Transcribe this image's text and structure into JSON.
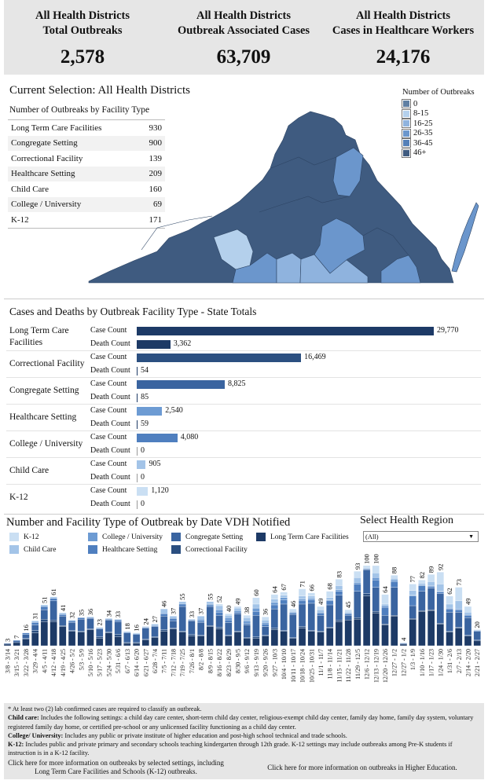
{
  "kpis": [
    {
      "title1": "All Health Districts",
      "title2": "Total Outbreaks",
      "value": "2,578"
    },
    {
      "title1": "All Health Districts",
      "title2": "Outbreak Associated Cases",
      "value": "63,709"
    },
    {
      "title1": "All Health Districts",
      "title2": "Cases in Healthcare Workers",
      "value": "24,176"
    }
  ],
  "selection": {
    "title": "Current Selection: All Health Districts",
    "table_title": "Number of Outbreaks by Facility Type",
    "rows": [
      {
        "label": "Long Term Care Facilities",
        "value": "930"
      },
      {
        "label": "Congregate Setting",
        "value": "900"
      },
      {
        "label": "Correctional Facility",
        "value": "139"
      },
      {
        "label": "Healthcare Setting",
        "value": "209"
      },
      {
        "label": "Child Care",
        "value": "160"
      },
      {
        "label": "College / University",
        "value": "69"
      },
      {
        "label": "K-12",
        "value": "171"
      }
    ]
  },
  "map_legend": {
    "title": "Number of Outbreaks",
    "items": [
      {
        "label": "0",
        "color": "#5f7fa3"
      },
      {
        "label": "8-15",
        "color": "#b4d0ec"
      },
      {
        "label": "16-25",
        "color": "#8fb3de"
      },
      {
        "label": "26-35",
        "color": "#6b96cc"
      },
      {
        "label": "36-45",
        "color": "#5580b8"
      },
      {
        "label": "46+",
        "color": "#3f5b80"
      }
    ]
  },
  "cases_deaths": {
    "title": "Cases and Deaths by Outbreak Facility Type - State Totals",
    "case_label": "Case Count",
    "death_label": "Death Count",
    "groups": [
      {
        "name": "Long Term Care Facilities",
        "cases": 29770,
        "cases_label": "29,770",
        "deaths": 3362,
        "deaths_label": "3,362",
        "color": "#1d3a66"
      },
      {
        "name": "Correctional Facility",
        "cases": 16469,
        "cases_label": "16,469",
        "deaths": 54,
        "deaths_label": "54",
        "color": "#2b4f80"
      },
      {
        "name": "Congregate Setting",
        "cases": 8825,
        "cases_label": "8,825",
        "deaths": 85,
        "deaths_label": "85",
        "color": "#3a64a0"
      },
      {
        "name": "Healthcare Setting",
        "cases": 2540,
        "cases_label": "2,540",
        "deaths": 59,
        "deaths_label": "59",
        "color": "#6d9bd3"
      },
      {
        "name": "College / University",
        "cases": 4080,
        "cases_label": "4,080",
        "deaths": 0,
        "deaths_label": "0",
        "color": "#4f7fbf"
      },
      {
        "name": "Child Care",
        "cases": 905,
        "cases_label": "905",
        "deaths": 0,
        "deaths_label": "0",
        "color": "#a3c4e8"
      },
      {
        "name": "K-12",
        "cases": 1120,
        "cases_label": "1,120",
        "deaths": 0,
        "deaths_label": "0",
        "color": "#cadff3"
      }
    ]
  },
  "weekly": {
    "title": "Number and Facility Type of Outbreak by Date VDH Notified",
    "region_label": "Select Health Region",
    "region_value": "(All)"
  },
  "chart_data": {
    "type": "bar",
    "stacked": true,
    "title": "Number and Facility Type of Outbreak by Date VDH Notified",
    "legend_position": "top",
    "series": [
      {
        "name": "Long Term Care Facilities",
        "color": "#1d3a66"
      },
      {
        "name": "Correctional Facility",
        "color": "#2b4f80"
      },
      {
        "name": "Congregate Setting",
        "color": "#3a64a0"
      },
      {
        "name": "Healthcare Setting",
        "color": "#4f7fbf"
      },
      {
        "name": "College / University",
        "color": "#6d9bd3"
      },
      {
        "name": "Child Care",
        "color": "#a3c4e8"
      },
      {
        "name": "K-12",
        "color": "#cadff3"
      }
    ],
    "legend_order": [
      "K-12",
      "Child Care",
      "College / University",
      "Healthcare Setting",
      "Congregate Setting",
      "Correctional Facility",
      "Long Term Care Facilities"
    ],
    "categories": [
      "3/8 - 3/14",
      "3/15 - 3/21",
      "3/22 - 3/28",
      "3/29 - 4/4",
      "4/5 - 4/11",
      "4/12 - 4/18",
      "4/19 - 4/25",
      "4/26 - 5/2",
      "5/3 - 5/9",
      "5/10 - 5/16",
      "5/17 - 5/23",
      "5/24 - 5/30",
      "5/31 - 6/6",
      "6/7 - 6/13",
      "6/14 - 6/20",
      "6/21 - 6/27",
      "6/28 - 7/4",
      "7/5 - 7/11",
      "7/12 - 7/18",
      "7/19 - 7/25",
      "7/26 - 8/1",
      "8/2 - 8/8",
      "8/9 - 8/15",
      "8/16 - 8/22",
      "8/23 - 8/29",
      "8/30 - 9/5",
      "9/6 - 9/12",
      "9/13 - 9/19",
      "9/20 - 9/26",
      "9/27 - 10/3",
      "10/4 - 10/10",
      "10/11 - 10/17",
      "10/18 - 10/24",
      "10/25 - 10/31",
      "11/1 - 11/7",
      "11/8 - 11/14",
      "11/15 - 11/21",
      "11/22 - 11/28",
      "11/29 - 12/5",
      "12/6 - 12/12",
      "12/13 - 12/19",
      "12/20 - 12/26",
      "12/27 - 1/2",
      "12/27 - 1/2",
      "1/3 - 1/9",
      "1/10 - 1/16",
      "1/17 - 1/23",
      "1/24 - 1/30",
      "1/31 - 2/6",
      "2/7 - 2/13",
      "2/14 - 2/20",
      "2/21 - 2/27"
    ],
    "totals": [
      3,
      7,
      16,
      31,
      51,
      61,
      41,
      32,
      35,
      36,
      23,
      34,
      33,
      18,
      16,
      24,
      27,
      46,
      37,
      55,
      33,
      37,
      55,
      52,
      40,
      49,
      38,
      60,
      36,
      64,
      67,
      46,
      71,
      66,
      49,
      68,
      83,
      45,
      93,
      100,
      100,
      64,
      88,
      4,
      77,
      82,
      89,
      92,
      62,
      73,
      49,
      20
    ],
    "breakdown": [
      [
        2,
        0,
        1,
        0,
        0,
        0,
        0
      ],
      [
        4,
        0,
        2,
        1,
        0,
        0,
        0
      ],
      [
        8,
        1,
        5,
        2,
        0,
        0,
        0
      ],
      [
        16,
        3,
        7,
        3,
        0,
        2,
        0
      ],
      [
        30,
        3,
        12,
        4,
        0,
        2,
        0
      ],
      [
        30,
        2,
        24,
        3,
        0,
        2,
        0
      ],
      [
        24,
        1,
        12,
        2,
        0,
        2,
        0
      ],
      [
        18,
        1,
        10,
        2,
        0,
        1,
        0
      ],
      [
        17,
        1,
        15,
        2,
        0,
        0,
        0
      ],
      [
        20,
        1,
        13,
        1,
        0,
        1,
        0
      ],
      [
        9,
        2,
        10,
        1,
        0,
        1,
        0
      ],
      [
        16,
        1,
        15,
        1,
        0,
        1,
        0
      ],
      [
        11,
        3,
        16,
        2,
        0,
        1,
        0
      ],
      [
        3,
        1,
        12,
        1,
        0,
        1,
        0
      ],
      [
        3,
        1,
        10,
        1,
        0,
        1,
        0
      ],
      [
        7,
        1,
        14,
        1,
        0,
        1,
        0
      ],
      [
        10,
        1,
        13,
        1,
        0,
        2,
        0
      ],
      [
        18,
        2,
        17,
        3,
        0,
        6,
        0
      ],
      [
        21,
        1,
        9,
        3,
        0,
        3,
        0
      ],
      [
        17,
        1,
        31,
        3,
        0,
        3,
        0
      ],
      [
        12,
        2,
        17,
        1,
        0,
        1,
        0
      ],
      [
        12,
        1,
        16,
        2,
        2,
        4,
        0
      ],
      [
        24,
        1,
        24,
        2,
        1,
        3,
        0
      ],
      [
        21,
        2,
        15,
        4,
        3,
        5,
        2
      ],
      [
        12,
        1,
        16,
        3,
        3,
        3,
        2
      ],
      [
        17,
        1,
        22,
        2,
        2,
        3,
        2
      ],
      [
        9,
        1,
        16,
        2,
        3,
        4,
        3
      ],
      [
        9,
        2,
        27,
        5,
        4,
        5,
        8
      ],
      [
        12,
        1,
        11,
        3,
        2,
        3,
        4
      ],
      [
        20,
        2,
        24,
        5,
        3,
        4,
        6
      ],
      [
        18,
        1,
        33,
        5,
        3,
        3,
        4
      ],
      [
        9,
        1,
        29,
        2,
        1,
        1,
        3
      ],
      [
        22,
        2,
        28,
        4,
        2,
        4,
        9
      ],
      [
        18,
        1,
        34,
        4,
        2,
        3,
        4
      ],
      [
        17,
        1,
        20,
        3,
        1,
        3,
        4
      ],
      [
        22,
        1,
        28,
        5,
        1,
        3,
        8
      ],
      [
        30,
        2,
        31,
        5,
        2,
        5,
        8
      ],
      [
        32,
        0,
        6,
        2,
        1,
        1,
        3
      ],
      [
        33,
        2,
        33,
        9,
        2,
        6,
        8
      ],
      [
        62,
        3,
        30,
        1,
        0,
        1,
        3
      ],
      [
        41,
        2,
        30,
        9,
        3,
        6,
        9
      ],
      [
        26,
        1,
        11,
        10,
        2,
        2,
        12
      ],
      [
        37,
        1,
        35,
        7,
        2,
        2,
        4
      ],
      [
        2,
        0,
        1,
        0,
        0,
        0,
        1
      ],
      [
        33,
        1,
        16,
        12,
        1,
        6,
        8
      ],
      [
        43,
        1,
        24,
        7,
        1,
        2,
        4
      ],
      [
        44,
        1,
        27,
        2,
        1,
        5,
        9
      ],
      [
        27,
        1,
        37,
        2,
        1,
        9,
        15
      ],
      [
        17,
        1,
        24,
        4,
        1,
        5,
        10
      ],
      [
        22,
        1,
        19,
        3,
        1,
        10,
        17
      ],
      [
        12,
        1,
        22,
        3,
        1,
        3,
        7
      ],
      [
        6,
        1,
        11,
        1,
        0,
        1,
        0
      ]
    ]
  },
  "footnotes": {
    "note1": "* At least two (2) lab confirmed cases are required to classify an outbreak.",
    "child_label": "Child care:",
    "child_text": " Includes the following settings: a child day care center, short-term child day center, religious-exempt child day center, family day home, family day system, voluntary registered family day home, or certified pre-school or any unlicensed facility functioning as a child day center.",
    "college_label": "College/ University:",
    "college_text": " Includes any public or private institute of higher education and post-high school technical and trade schools.",
    "k12_label": "K-12:",
    "k12_text": " Includes public and private primary and secondary schools teaching kindergarten through 12th grade. K-12 settings may include outbreaks among Pre-K students if instruction is in a K-12 facility.",
    "link1": "Click here for more information on outbreaks by selected settings, including Long Term Care Facilities and Schools (K-12) outbreaks.",
    "link2": "Click here for more information on outbreaks in Higher Education."
  }
}
